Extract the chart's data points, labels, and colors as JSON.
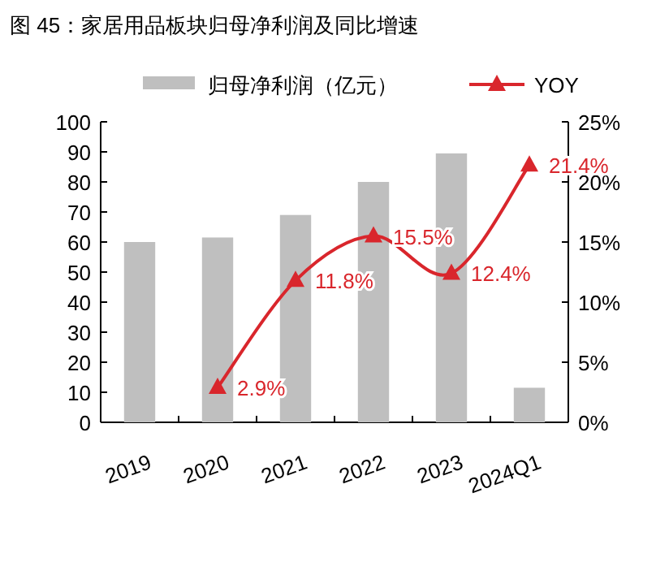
{
  "chart_data": {
    "type": "bar",
    "title": "图 45：家居用品板块归母净利润及同比增速",
    "categories": [
      "2019",
      "2020",
      "2021",
      "2022",
      "2023",
      "2024Q1"
    ],
    "series": [
      {
        "name": "归母净利润（亿元）",
        "color": "#bfbfbf",
        "values": [
          60,
          61.5,
          69,
          80,
          89.5,
          11.5
        ]
      },
      {
        "name": "YOY",
        "type": "line",
        "axis": "y2",
        "color": "#d9262c",
        "marker": "triangle",
        "values": [
          null,
          2.9,
          11.8,
          15.5,
          12.4,
          21.4
        ],
        "value_labels": [
          null,
          "2.9%",
          "11.8%",
          "15.5%",
          "12.4%",
          "21.4%"
        ]
      }
    ],
    "ylim": [
      0,
      100
    ],
    "yticks": [
      0,
      10,
      20,
      30,
      40,
      50,
      60,
      70,
      80,
      90,
      100
    ],
    "y2lim": [
      0,
      25
    ],
    "y2ticks": [
      {
        "value": 0,
        "label": "0%"
      },
      {
        "value": 5,
        "label": "5%"
      },
      {
        "value": 10,
        "label": "10%"
      },
      {
        "value": 15,
        "label": "15%"
      },
      {
        "value": 20,
        "label": "20%"
      },
      {
        "value": 25,
        "label": "25%"
      }
    ],
    "grid": false,
    "legend": "top"
  }
}
